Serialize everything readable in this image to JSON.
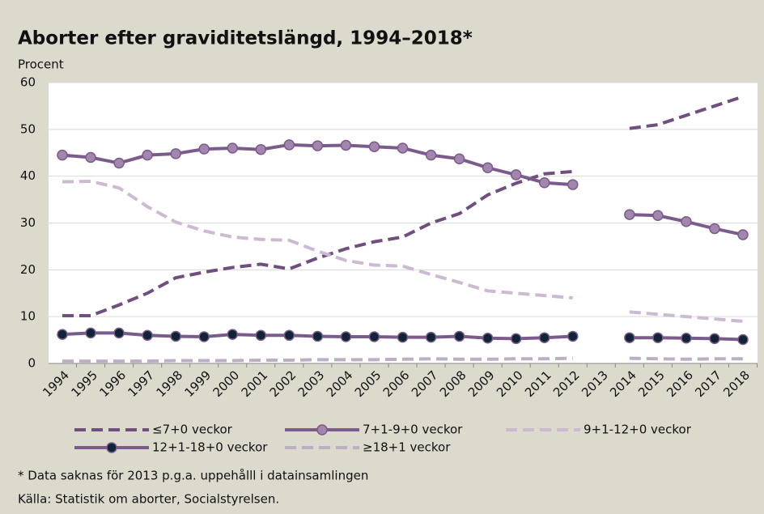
{
  "chart_data": {
    "type": "line",
    "title": "Aborter efter graviditetslängd, 1994–2018*",
    "y_label": "Procent",
    "footnotes": [
      "* Data saknas för 2013 p.g.a. uppehålll i datainsamlingen",
      "Källa: Statistik om aborter, Socialstyrelsen."
    ],
    "categories": [
      "1994",
      "1995",
      "1996",
      "1997",
      "1998",
      "1999",
      "2000",
      "2001",
      "2002",
      "2003",
      "2004",
      "2005",
      "2006",
      "2007",
      "2008",
      "2009",
      "2010",
      "2011",
      "2012",
      "2013",
      "2014",
      "2015",
      "2016",
      "2017",
      "2018"
    ],
    "ylim": [
      0,
      60
    ],
    "yticks": [
      0,
      10,
      20,
      30,
      40,
      50,
      60
    ],
    "grid": true,
    "series": [
      {
        "name": "≤7+0 veckor",
        "color": "#6e4f7e",
        "dash": true,
        "marker": false,
        "values": [
          10.2,
          10.2,
          12.5,
          15,
          18.3,
          19.5,
          20.5,
          21.2,
          20.2,
          22.5,
          24.5,
          26,
          27,
          30,
          32,
          36,
          38.5,
          40.5,
          41,
          null,
          50.2,
          51,
          53,
          55,
          57
        ]
      },
      {
        "name": "7+1-9+0 veckor",
        "color": "#7b5b8b",
        "marker_color": "#a286ae",
        "dash": false,
        "marker": true,
        "values": [
          44.5,
          44,
          42.8,
          44.5,
          44.8,
          45.8,
          46,
          45.7,
          46.7,
          46.5,
          46.6,
          46.3,
          46,
          44.5,
          43.7,
          41.8,
          40.3,
          38.6,
          38.2,
          null,
          31.8,
          31.6,
          30.3,
          28.8,
          27.5
        ]
      },
      {
        "name": "9+1-12+0 veckor",
        "color": "#cbbad2",
        "dash": true,
        "marker": false,
        "values": [
          38.8,
          38.9,
          37.5,
          33.5,
          30.2,
          28.3,
          27,
          26.5,
          26.3,
          24,
          22,
          21,
          20.8,
          19,
          17.3,
          15.5,
          15,
          14.5,
          14,
          null,
          11,
          10.5,
          10,
          9.5,
          9
        ]
      },
      {
        "name": "12+1-18+0 veckor",
        "color": "#7b5b8b",
        "marker_color": "#0f2436",
        "dash": false,
        "marker": true,
        "values": [
          6.2,
          6.5,
          6.5,
          6,
          5.8,
          5.7,
          6.2,
          6,
          6,
          5.8,
          5.7,
          5.7,
          5.6,
          5.6,
          5.8,
          5.4,
          5.3,
          5.5,
          5.8,
          null,
          5.5,
          5.5,
          5.4,
          5.3,
          5.1
        ]
      },
      {
        "name": "≥18+1 veckor",
        "color": "#bcaec4",
        "dash": true,
        "marker": false,
        "values": [
          0.5,
          0.5,
          0.5,
          0.5,
          0.6,
          0.6,
          0.6,
          0.7,
          0.7,
          0.8,
          0.8,
          0.8,
          0.9,
          1,
          0.9,
          0.9,
          1,
          1,
          1.1,
          null,
          1.1,
          1,
          0.9,
          1,
          1
        ]
      }
    ]
  }
}
